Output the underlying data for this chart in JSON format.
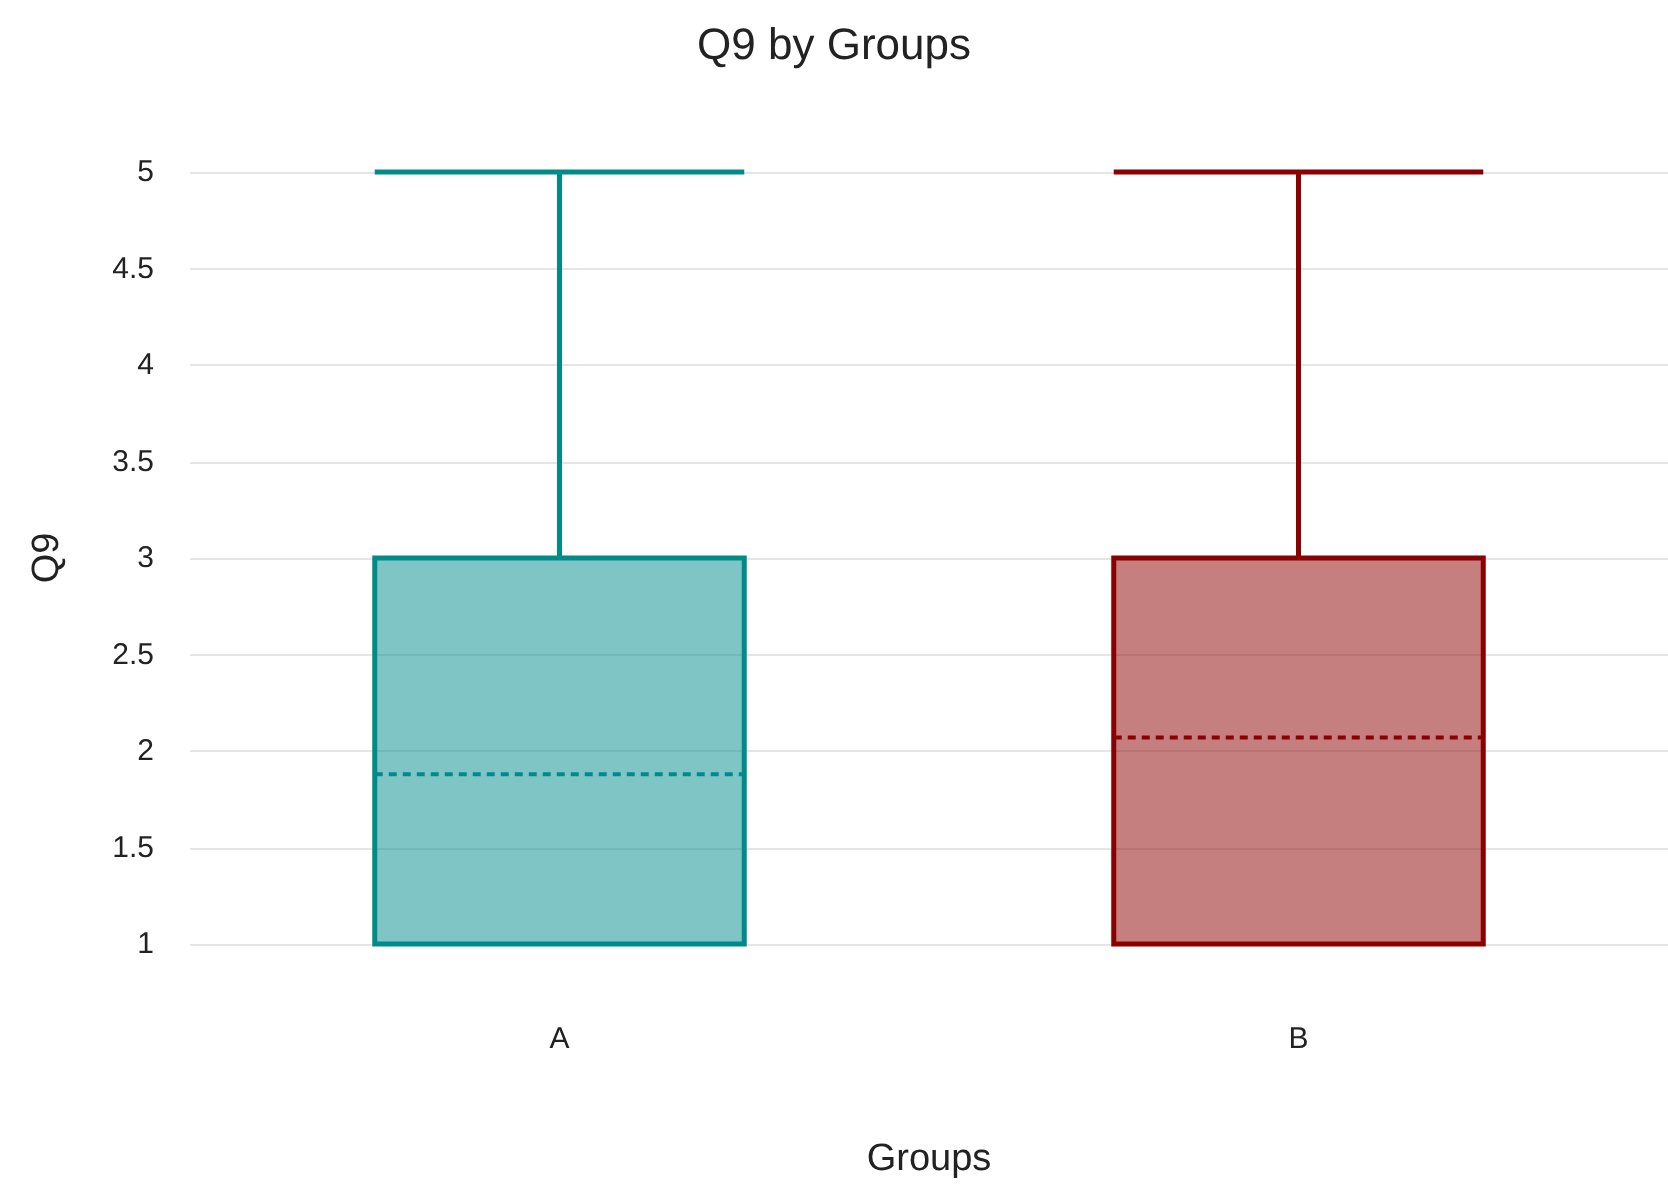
{
  "chart_data": {
    "type": "box",
    "title": "Q9 by Groups",
    "xlabel": "Groups",
    "ylabel": "Q9",
    "categories": [
      "A",
      "B"
    ],
    "colors": [
      "#008b8b",
      "#8b0000"
    ],
    "boxes": [
      {
        "low": 1,
        "q1": 1,
        "median": 1,
        "q3": 3,
        "high": 5,
        "mean": 1.88
      },
      {
        "low": 1,
        "q1": 1,
        "median": 1,
        "q3": 3,
        "high": 5,
        "mean": 2.07
      }
    ],
    "ylim": [
      1,
      5
    ],
    "yticks": [
      1,
      1.5,
      2,
      2.5,
      3,
      3.5,
      4,
      4.5,
      5
    ],
    "grid": "y"
  }
}
